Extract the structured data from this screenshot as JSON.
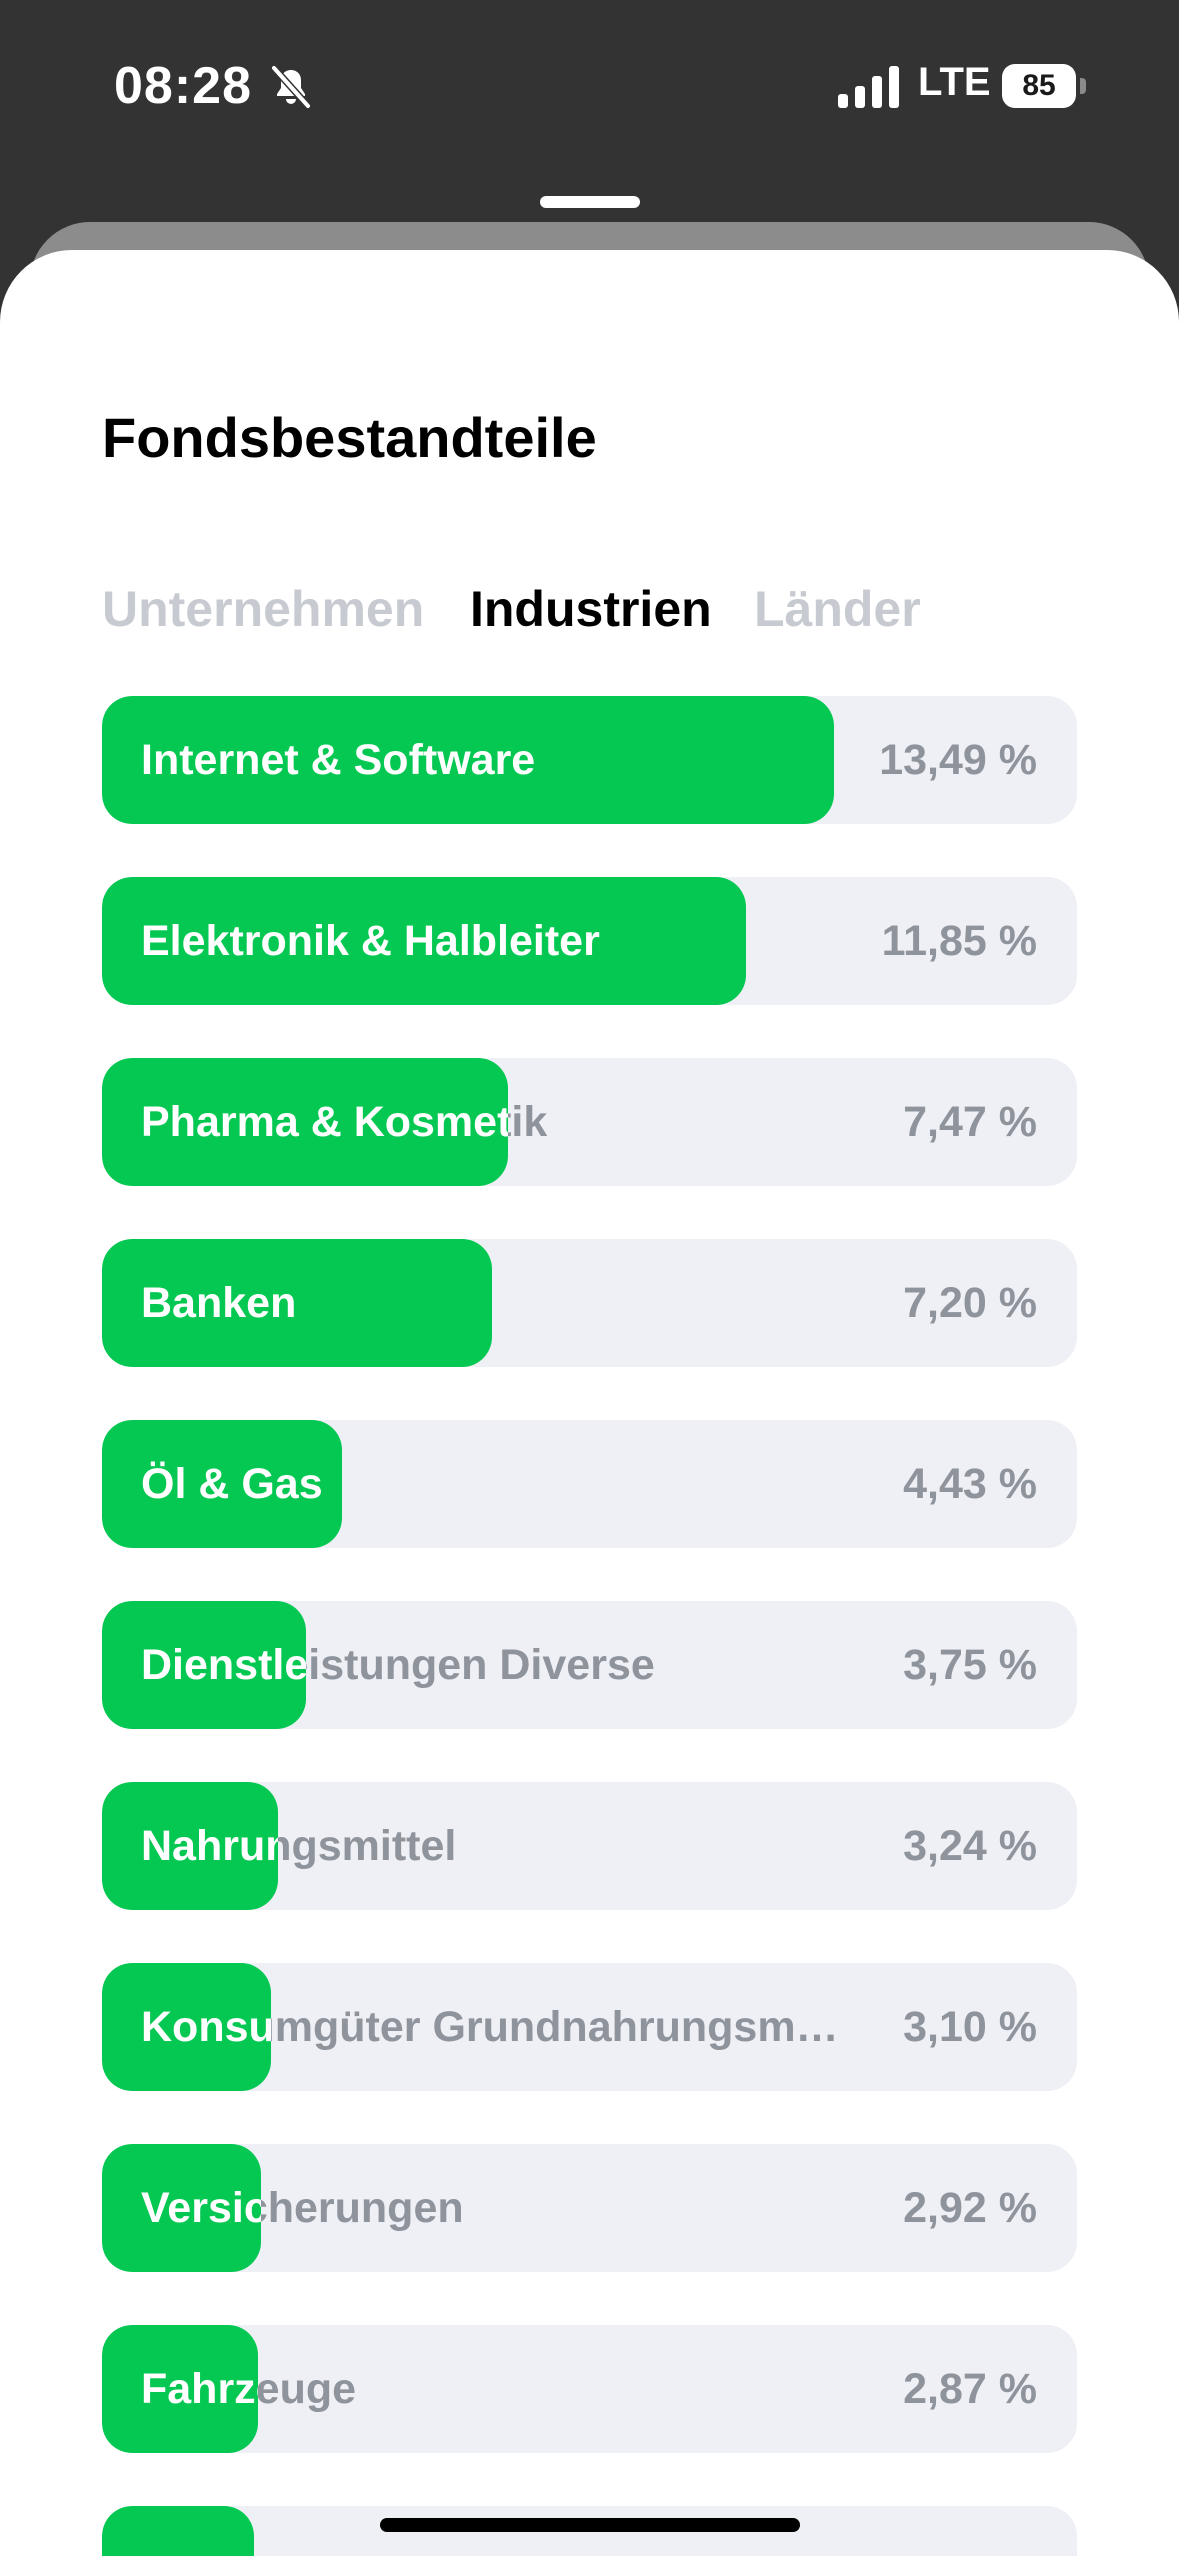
{
  "status_bar": {
    "time": "08:28",
    "network": "LTE",
    "battery": "85",
    "icons": [
      "bell-off-icon",
      "signal-icon",
      "battery-icon"
    ]
  },
  "sheet": {
    "title": "Fondsbestandteile",
    "tabs": [
      {
        "label": "Unternehmen",
        "active": false
      },
      {
        "label": "Industrien",
        "active": true
      },
      {
        "label": "Länder",
        "active": false
      }
    ],
    "rows": [
      {
        "label": "Internet & Software",
        "value": "13,49 %",
        "fill_fraction": 0.751
      },
      {
        "label": "Elektronik & Halbleiter",
        "value": "11,85 %",
        "fill_fraction": 0.66
      },
      {
        "label": "Pharma & Kosmetik",
        "value": "7,47 %",
        "fill_fraction": 0.416
      },
      {
        "label": "Banken",
        "value": "7,20 %",
        "fill_fraction": 0.4
      },
      {
        "label": "Öl & Gas",
        "value": "4,43 %",
        "fill_fraction": 0.246
      },
      {
        "label": "Dienstleistungen Diverse",
        "value": "3,75 %",
        "fill_fraction": 0.209
      },
      {
        "label": "Nahrungsmittel",
        "value": "3,24 %",
        "fill_fraction": 0.18
      },
      {
        "label": "Konsumgüter Grundnahrungsm…",
        "value": "3,10 %",
        "fill_fraction": 0.173
      },
      {
        "label": "Versicherungen",
        "value": "2,92 %",
        "fill_fraction": 0.163
      },
      {
        "label": "Fahrzeuge",
        "value": "2,87 %",
        "fill_fraction": 0.16
      },
      {
        "label": "",
        "value": "",
        "fill_fraction": 0.156
      }
    ]
  },
  "colors": {
    "accent_green": "#05c852",
    "row_background": "#eff0f5",
    "inactive_tab": "#c7cbd1",
    "muted_text": "#8f939c"
  }
}
